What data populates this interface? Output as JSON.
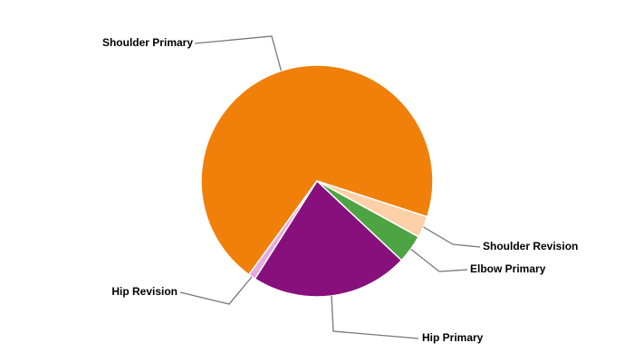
{
  "chart_data": {
    "type": "pie",
    "categories": [
      "Shoulder Primary",
      "Shoulder Revision",
      "Elbow Primary",
      "Hip Primary",
      "Hip Revision"
    ],
    "values": [
      70,
      3,
      4,
      22,
      1
    ],
    "colors": [
      "#f0800a",
      "#fdd0a8",
      "#4ea342",
      "#87107c",
      "#e8a8e0"
    ]
  }
}
